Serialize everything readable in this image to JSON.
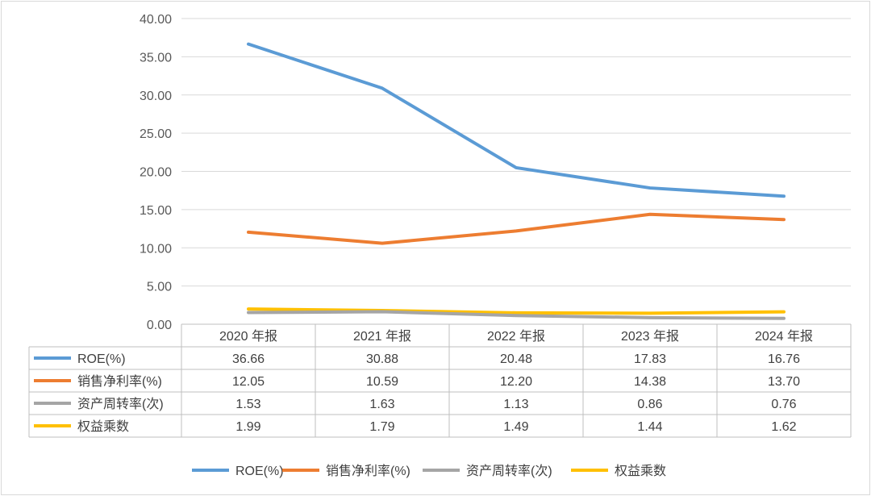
{
  "chart_data": {
    "type": "line",
    "categories": [
      "2020 年报",
      "2021 年报",
      "2022 年报",
      "2023 年报",
      "2024 年报"
    ],
    "ylim": [
      0,
      40
    ],
    "yticks": [
      "0.00",
      "5.00",
      "10.00",
      "15.00",
      "20.00",
      "25.00",
      "30.00",
      "35.00",
      "40.00"
    ],
    "grid": true,
    "legend_position": "bottom",
    "series": [
      {
        "name": "ROE(%)",
        "color": "#5b9bd5",
        "values": [
          36.66,
          30.88,
          20.48,
          17.83,
          16.76
        ],
        "labels": [
          "36.66",
          "30.88",
          "20.48",
          "17.83",
          "16.76"
        ]
      },
      {
        "name": "销售净利率(%)",
        "color": "#ed7d31",
        "values": [
          12.05,
          10.59,
          12.2,
          14.38,
          13.7
        ],
        "labels": [
          "12.05",
          "10.59",
          "12.20",
          "14.38",
          "13.70"
        ]
      },
      {
        "name": "资产周转率(次)",
        "color": "#a5a5a5",
        "values": [
          1.53,
          1.63,
          1.13,
          0.86,
          0.76
        ],
        "labels": [
          "1.53",
          "1.63",
          "1.13",
          "0.86",
          "0.76"
        ]
      },
      {
        "name": "权益乘数",
        "color": "#ffc000",
        "values": [
          1.99,
          1.79,
          1.49,
          1.44,
          1.62
        ],
        "labels": [
          "1.99",
          "1.79",
          "1.49",
          "1.44",
          "1.62"
        ]
      }
    ]
  }
}
